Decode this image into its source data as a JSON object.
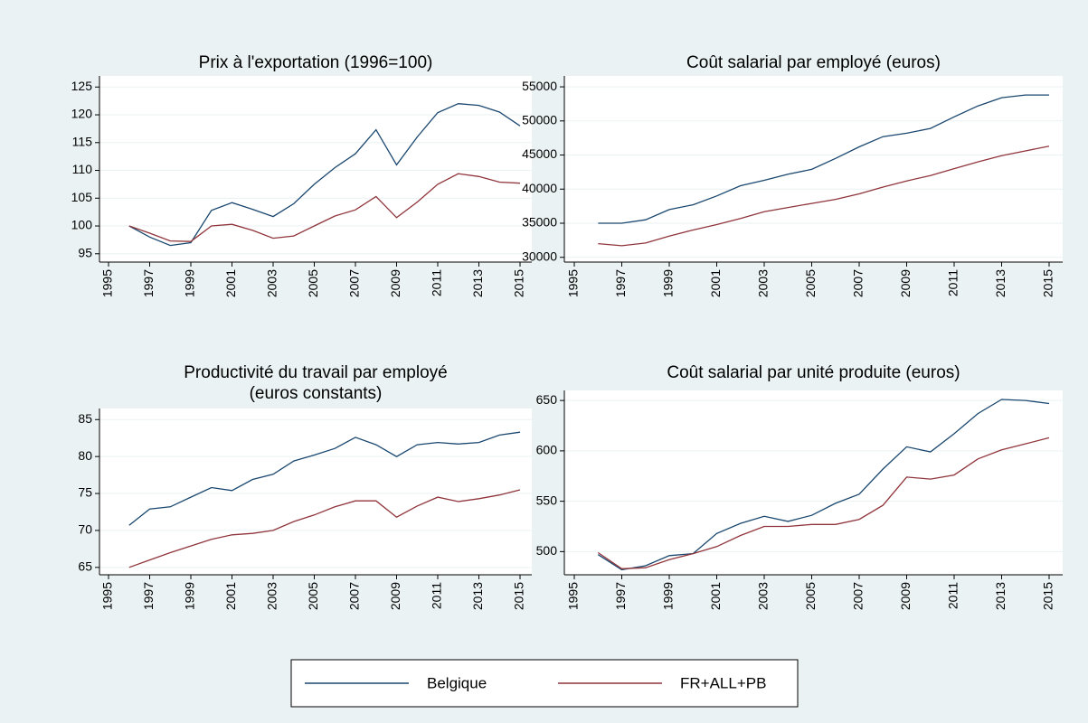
{
  "chart_data": [
    {
      "type": "line",
      "title": [
        "Prix à l'exportation (1996=100)"
      ],
      "x": [
        1996,
        1997,
        1998,
        1999,
        2000,
        2001,
        2002,
        2003,
        2004,
        2005,
        2006,
        2007,
        2008,
        2009,
        2010,
        2011,
        2012,
        2013,
        2014,
        2015
      ],
      "xlim": [
        1995,
        2015
      ],
      "xticks": [
        1995,
        1997,
        1999,
        2001,
        2003,
        2005,
        2007,
        2009,
        2011,
        2013,
        2015
      ],
      "ylim": [
        93.5,
        127
      ],
      "yticks": [
        95,
        100,
        105,
        110,
        115,
        120,
        125
      ],
      "grid": true,
      "series": [
        {
          "name": "Belgique",
          "color": "#1a476f",
          "values": [
            100,
            98,
            96.5,
            97,
            102.8,
            104.2,
            103,
            101.7,
            104,
            107.5,
            110.5,
            113,
            117.3,
            111,
            116,
            120.4,
            122,
            121.7,
            120.5,
            118
          ]
        },
        {
          "name": "FR+ALL+PB",
          "color": "#90353b",
          "values": [
            100,
            98.7,
            97.3,
            97.2,
            100,
            100.3,
            99.2,
            97.8,
            98.2,
            100,
            101.8,
            102.9,
            105.3,
            101.5,
            104.3,
            107.5,
            109.4,
            108.9,
            107.9,
            107.7
          ]
        }
      ]
    },
    {
      "type": "line",
      "title": [
        "Coût salarial par employé (euros)"
      ],
      "x": [
        1996,
        1997,
        1998,
        1999,
        2000,
        2001,
        2002,
        2003,
        2004,
        2005,
        2006,
        2007,
        2008,
        2009,
        2010,
        2011,
        2012,
        2013,
        2014,
        2015
      ],
      "xlim": [
        1995,
        2015
      ],
      "xticks": [
        1995,
        1997,
        1999,
        2001,
        2003,
        2005,
        2007,
        2009,
        2011,
        2013,
        2015
      ],
      "ylim": [
        29300,
        56600
      ],
      "yticks": [
        30000,
        35000,
        40000,
        45000,
        50000,
        55000
      ],
      "grid": true,
      "series": [
        {
          "color": "#1a476f",
          "values": [
            35000,
            35000,
            35500,
            37000,
            37700,
            39000,
            40500,
            41300,
            42200,
            42900,
            44500,
            46200,
            47700,
            48200,
            48900,
            50600,
            52200,
            53400,
            53800,
            53800
          ]
        },
        {
          "color": "#90353b",
          "values": [
            32000,
            31700,
            32100,
            33100,
            34000,
            34800,
            35700,
            36700,
            37300,
            37900,
            38500,
            39300,
            40300,
            41200,
            42000,
            43000,
            44000,
            44900,
            45600,
            46300
          ]
        }
      ]
    },
    {
      "type": "line",
      "title": [
        "Productivité du travail par employé",
        "(euros constants)"
      ],
      "x": [
        1996,
        1997,
        1998,
        1999,
        2000,
        2001,
        2002,
        2003,
        2004,
        2005,
        2006,
        2007,
        2008,
        2009,
        2010,
        2011,
        2012,
        2013,
        2014,
        2015
      ],
      "xlim": [
        1995,
        2015
      ],
      "xticks": [
        1995,
        1997,
        1999,
        2001,
        2003,
        2005,
        2007,
        2009,
        2011,
        2013,
        2015
      ],
      "ylim": [
        64,
        86.5
      ],
      "yticks": [
        65,
        70,
        75,
        80,
        85
      ],
      "grid": true,
      "series": [
        {
          "color": "#1a476f",
          "values": [
            70.7,
            72.9,
            73.2,
            74.5,
            75.8,
            75.4,
            76.9,
            77.6,
            79.4,
            80.2,
            81.1,
            82.6,
            81.6,
            80,
            81.6,
            81.9,
            81.7,
            81.9,
            82.9,
            83.3
          ]
        },
        {
          "color": "#90353b",
          "values": [
            65,
            66,
            67,
            67.9,
            68.8,
            69.4,
            69.6,
            70,
            71.2,
            72.1,
            73.2,
            74,
            74,
            71.8,
            73.3,
            74.5,
            73.9,
            74.3,
            74.8,
            75.5
          ]
        }
      ]
    },
    {
      "type": "line",
      "title": [
        "Coût salarial par unité produite (euros)"
      ],
      "x": [
        1996,
        1997,
        1998,
        1999,
        2000,
        2001,
        2002,
        2003,
        2004,
        2005,
        2006,
        2007,
        2008,
        2009,
        2010,
        2011,
        2012,
        2013,
        2014,
        2015
      ],
      "xlim": [
        1995,
        2015
      ],
      "xticks": [
        1995,
        1997,
        1999,
        2001,
        2003,
        2005,
        2007,
        2009,
        2011,
        2013,
        2015
      ],
      "ylim": [
        477,
        660
      ],
      "yticks": [
        500,
        550,
        600,
        650
      ],
      "grid": true,
      "series": [
        {
          "color": "#1a476f",
          "values": [
            497,
            482,
            486,
            496,
            498,
            518,
            528,
            535,
            530,
            536,
            548,
            557,
            582,
            604,
            599,
            617,
            637,
            651,
            650,
            647
          ]
        },
        {
          "color": "#90353b",
          "values": [
            499,
            483,
            484,
            492,
            498,
            505,
            516,
            525,
            525,
            527,
            527,
            532,
            546,
            574,
            572,
            576,
            592,
            601,
            607,
            613
          ]
        }
      ]
    }
  ]
}
